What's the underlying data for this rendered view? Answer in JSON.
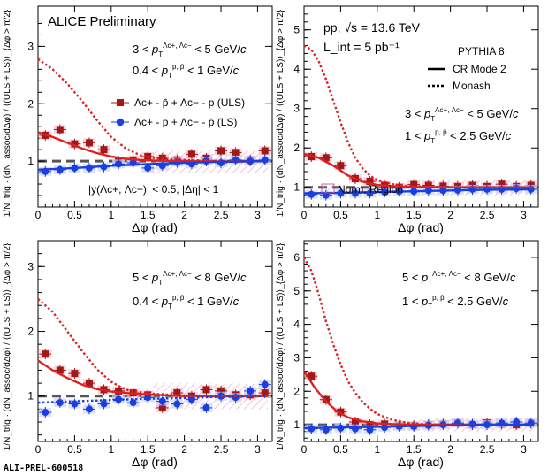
{
  "figure": {
    "footer_id": "ALI-PREL-600518",
    "y_axis_label": "1/N_trig · (dN_assoc/dΔφ) / ⟨(ULS + LS)⟩_{Δφ > π/2}",
    "x_axis_label": "Δφ (rad)",
    "colors": {
      "uls": "#a01818",
      "ls": "#1a3fe0",
      "model": "#e02020",
      "norm_region": "#e8a0c8",
      "dashed_one": "#555555"
    }
  },
  "chart_data": [
    {
      "type": "scatter",
      "panel": "top-left",
      "xlim": [
        0,
        3.2
      ],
      "ylim": [
        0.2,
        3.7
      ],
      "x_ticks": [
        0,
        0.5,
        1,
        1.5,
        2,
        2.5,
        3
      ],
      "y_ticks": [
        1,
        2,
        3
      ],
      "texts": [
        "ALICE Preliminary",
        "3 < pT(Λc+, Λc−) < 5 GeV/c",
        "0.4 < pT(p, p̄) < 1 GeV/c",
        "|y(Λc+, Λc−)| < 0.5, |Δη| < 1"
      ],
      "legend": [
        "Λc+ - p̄ + Λc− - p (ULS)",
        "Λc+ - p + Λc− - p̄ (LS)"
      ],
      "norm_region": [
        1.57,
        3.14
      ],
      "series": [
        {
          "name": "Λc+ - p̄ + Λc− - p (ULS)",
          "color": "#a01818",
          "marker": "square",
          "x": [
            0.1,
            0.3,
            0.5,
            0.7,
            0.9,
            1.1,
            1.3,
            1.5,
            1.7,
            1.9,
            2.1,
            2.3,
            2.5,
            2.7,
            2.9,
            3.1
          ],
          "y": [
            1.45,
            1.55,
            1.3,
            1.32,
            1.2,
            1.0,
            1.02,
            1.08,
            1.05,
            1.02,
            1.12,
            1.05,
            1.18,
            1.15,
            1.02,
            1.18
          ]
        },
        {
          "name": "Λc+ - p + Λc− - p̄ (LS)",
          "color": "#1a3fe0",
          "marker": "circle",
          "x": [
            0.1,
            0.3,
            0.5,
            0.7,
            0.9,
            1.1,
            1.3,
            1.5,
            1.7,
            1.9,
            2.1,
            2.3,
            2.5,
            2.7,
            2.9,
            3.1
          ],
          "y": [
            0.82,
            0.85,
            0.88,
            0.88,
            0.9,
            0.95,
            0.97,
            0.88,
            0.92,
            0.98,
            0.95,
            1.0,
            0.97,
            1.02,
            1.0,
            1.02
          ]
        },
        {
          "name": "CR Mode 2",
          "color": "#e02020",
          "style": "solid",
          "x": [
            0,
            0.2,
            0.4,
            0.6,
            0.8,
            1.0,
            1.2,
            1.4,
            1.6,
            2.0,
            2.5,
            3.14
          ],
          "y": [
            1.5,
            1.42,
            1.32,
            1.22,
            1.14,
            1.08,
            1.04,
            1.02,
            1.01,
            1.0,
            0.99,
            1.0
          ]
        },
        {
          "name": "Monash",
          "color": "#e02020",
          "style": "dotted",
          "x": [
            0,
            0.2,
            0.4,
            0.6,
            0.8,
            1.0,
            1.2,
            1.4,
            1.6,
            2.0,
            2.5,
            3.14
          ],
          "y": [
            2.78,
            2.6,
            2.35,
            2.05,
            1.72,
            1.42,
            1.22,
            1.1,
            1.05,
            1.02,
            1.0,
            1.0
          ]
        },
        {
          "name": "LS model",
          "color": "#1a3fe0",
          "style": "solid",
          "x": [
            0,
            0.5,
            1.0,
            1.5,
            2.0,
            2.5,
            3.14
          ],
          "y": [
            0.85,
            0.88,
            0.92,
            0.95,
            0.97,
            0.99,
            1.0
          ]
        }
      ]
    },
    {
      "type": "scatter",
      "panel": "top-right",
      "xlim": [
        0,
        3.2
      ],
      "ylim": [
        0.5,
        5.6
      ],
      "x_ticks": [
        0,
        0.5,
        1,
        1.5,
        2,
        2.5,
        3
      ],
      "y_ticks": [
        1,
        2,
        3,
        4,
        5
      ],
      "texts": [
        "pp, √s = 13.6 TeV",
        "L_int = 5 pb⁻¹",
        "PYTHIA 8",
        "3 < pT(Λc+, Λc−) < 5 GeV/c",
        "1 < pT(p, p̄) < 2.5 GeV/c"
      ],
      "legend": [
        "CR Mode 2",
        "Monash",
        "Norm. Region"
      ],
      "norm_region": [
        1.57,
        3.14
      ],
      "series": [
        {
          "name": "ULS",
          "color": "#a01818",
          "marker": "square",
          "x": [
            0.1,
            0.3,
            0.5,
            0.7,
            0.9,
            1.1,
            1.3,
            1.5,
            1.7,
            1.9,
            2.1,
            2.3,
            2.5,
            2.7,
            2.9,
            3.1
          ],
          "y": [
            1.78,
            1.75,
            1.55,
            1.22,
            1.15,
            1.05,
            1.0,
            1.07,
            1.05,
            1.03,
            1.02,
            1.05,
            1.02,
            1.08,
            1.02,
            1.05
          ]
        },
        {
          "name": "LS",
          "color": "#1a3fe0",
          "marker": "circle",
          "x": [
            0.1,
            0.3,
            0.5,
            0.7,
            0.9,
            1.1,
            1.3,
            1.5,
            1.7,
            1.9,
            2.1,
            2.3,
            2.5,
            2.7,
            2.9,
            3.1
          ],
          "y": [
            0.82,
            0.8,
            0.85,
            0.85,
            0.85,
            0.88,
            0.9,
            0.9,
            0.92,
            0.92,
            0.93,
            0.95,
            0.95,
            0.95,
            0.97,
            0.95
          ]
        },
        {
          "name": "CR Mode 2",
          "color": "#e02020",
          "style": "solid",
          "x": [
            0,
            0.2,
            0.4,
            0.6,
            0.8,
            1.0,
            1.2,
            1.5,
            2.0,
            2.5,
            3.14
          ],
          "y": [
            1.85,
            1.75,
            1.55,
            1.3,
            1.14,
            1.06,
            1.03,
            1.01,
            1.0,
            1.0,
            1.0
          ]
        },
        {
          "name": "Monash",
          "color": "#e02020",
          "style": "dotted",
          "x": [
            0,
            0.1,
            0.2,
            0.3,
            0.4,
            0.5,
            0.6,
            0.7,
            0.8,
            0.9,
            1.0,
            1.2,
            1.4,
            1.6,
            2.0,
            3.14
          ],
          "y": [
            4.6,
            4.5,
            4.2,
            3.75,
            3.2,
            2.65,
            2.15,
            1.75,
            1.48,
            1.3,
            1.18,
            1.08,
            1.04,
            1.02,
            1.0,
            1.0
          ]
        },
        {
          "name": "LS model",
          "color": "#1a3fe0",
          "style": "solid",
          "x": [
            0,
            0.5,
            1.0,
            1.5,
            2.0,
            2.5,
            3.14
          ],
          "y": [
            0.85,
            0.86,
            0.88,
            0.9,
            0.92,
            0.94,
            0.95
          ]
        }
      ]
    },
    {
      "type": "scatter",
      "panel": "bottom-left",
      "xlim": [
        0,
        3.2
      ],
      "ylim": [
        0.3,
        3.4
      ],
      "x_ticks": [
        0,
        0.5,
        1,
        1.5,
        2,
        2.5,
        3
      ],
      "y_ticks": [
        1,
        2,
        3
      ],
      "texts": [
        "5 < pT(Λc+, Λc−) < 8 GeV/c",
        "0.4 < pT(p, p̄) < 1 GeV/c"
      ],
      "norm_region": [
        1.57,
        3.14
      ],
      "series": [
        {
          "name": "ULS",
          "color": "#a01818",
          "marker": "square",
          "x": [
            0.1,
            0.3,
            0.5,
            0.7,
            0.9,
            1.1,
            1.3,
            1.5,
            1.7,
            1.9,
            2.1,
            2.3,
            2.5,
            2.7,
            2.9,
            3.1
          ],
          "y": [
            1.65,
            1.4,
            1.35,
            1.2,
            1.1,
            1.08,
            1.05,
            1.02,
            0.82,
            1.05,
            1.0,
            1.1,
            1.08,
            1.02,
            1.02,
            1.05
          ]
        },
        {
          "name": "LS",
          "color": "#1a3fe0",
          "marker": "circle",
          "x": [
            0.1,
            0.3,
            0.5,
            0.7,
            0.9,
            1.1,
            1.3,
            1.5,
            1.7,
            1.9,
            2.1,
            2.3,
            2.5,
            2.7,
            2.9,
            3.1
          ],
          "y": [
            0.75,
            0.9,
            0.88,
            0.8,
            0.88,
            0.95,
            0.9,
            0.98,
            0.92,
            0.88,
            0.95,
            0.82,
            1.0,
            0.98,
            1.08,
            1.18
          ]
        },
        {
          "name": "CR Mode 2",
          "color": "#e02020",
          "style": "solid",
          "x": [
            0,
            0.2,
            0.4,
            0.6,
            0.8,
            1.0,
            1.3,
            1.6,
            2.0,
            2.5,
            3.14
          ],
          "y": [
            1.55,
            1.4,
            1.28,
            1.18,
            1.11,
            1.07,
            1.04,
            1.02,
            1.0,
            1.0,
            1.0
          ]
        },
        {
          "name": "Monash",
          "color": "#e02020",
          "style": "dotted",
          "x": [
            0,
            0.2,
            0.4,
            0.6,
            0.8,
            1.0,
            1.2,
            1.5,
            2.0,
            2.5,
            3.14
          ],
          "y": [
            2.5,
            2.3,
            2.0,
            1.7,
            1.42,
            1.22,
            1.1,
            1.04,
            1.01,
            1.0,
            1.0
          ]
        },
        {
          "name": "LS model",
          "color": "#1a3fe0",
          "style": "dotted",
          "x": [
            0,
            0.5,
            1.0,
            1.5,
            2.0,
            2.5,
            3.14
          ],
          "y": [
            0.9,
            0.92,
            0.94,
            0.96,
            0.97,
            0.99,
            1.0
          ]
        }
      ]
    },
    {
      "type": "scatter",
      "panel": "bottom-right",
      "xlim": [
        0,
        3.2
      ],
      "ylim": [
        0.5,
        6.5
      ],
      "x_ticks": [
        0,
        0.5,
        1,
        1.5,
        2,
        2.5,
        3
      ],
      "y_ticks": [
        1,
        2,
        3,
        4,
        5,
        6
      ],
      "texts": [
        "5 < pT(Λc+, Λc−) < 8 GeV/c",
        "1 < pT(p, p̄) < 2.5 GeV/c"
      ],
      "norm_region": [
        1.57,
        3.14
      ],
      "series": [
        {
          "name": "ULS",
          "color": "#a01818",
          "marker": "square",
          "x": [
            0.1,
            0.3,
            0.5,
            0.7,
            0.9,
            1.1,
            1.3,
            1.5,
            1.7,
            1.9,
            2.1,
            2.3,
            2.5,
            2.7,
            2.9,
            3.1
          ],
          "y": [
            2.45,
            1.75,
            1.38,
            1.08,
            1.0,
            1.02,
            0.98,
            0.97,
            1.0,
            1.02,
            1.05,
            1.0,
            1.05,
            1.02,
            1.0,
            1.05
          ]
        },
        {
          "name": "LS",
          "color": "#1a3fe0",
          "marker": "circle",
          "x": [
            0.1,
            0.3,
            0.5,
            0.7,
            0.9,
            1.1,
            1.3,
            1.5,
            1.7,
            1.9,
            2.1,
            2.3,
            2.5,
            2.7,
            2.9,
            3.1
          ],
          "y": [
            0.88,
            0.85,
            0.9,
            0.88,
            0.85,
            0.92,
            0.95,
            0.95,
            0.98,
            1.0,
            1.05,
            1.02,
            1.0,
            1.05,
            1.08,
            1.05
          ]
        },
        {
          "name": "CR Mode 2",
          "color": "#e02020",
          "style": "solid",
          "x": [
            0,
            0.15,
            0.3,
            0.45,
            0.6,
            0.8,
            1.0,
            1.3,
            1.6,
            2.0,
            2.5,
            3.14
          ],
          "y": [
            2.6,
            2.1,
            1.7,
            1.4,
            1.22,
            1.1,
            1.04,
            1.01,
            1.0,
            1.0,
            1.0,
            1.0
          ]
        },
        {
          "name": "Monash",
          "color": "#e02020",
          "style": "dotted",
          "x": [
            0,
            0.1,
            0.2,
            0.3,
            0.4,
            0.5,
            0.6,
            0.7,
            0.8,
            0.9,
            1.0,
            1.2,
            1.4,
            1.6,
            2.0,
            3.14
          ],
          "y": [
            6.0,
            5.6,
            4.9,
            4.1,
            3.4,
            2.8,
            2.3,
            1.95,
            1.68,
            1.48,
            1.32,
            1.15,
            1.06,
            1.02,
            1.0,
            1.0
          ]
        },
        {
          "name": "LS model",
          "color": "#1a3fe0",
          "style": "solid",
          "x": [
            0,
            0.5,
            1.0,
            1.5,
            2.0,
            2.5,
            3.14
          ],
          "y": [
            0.9,
            0.92,
            0.94,
            0.96,
            0.98,
            1.0,
            1.0
          ]
        }
      ]
    }
  ]
}
